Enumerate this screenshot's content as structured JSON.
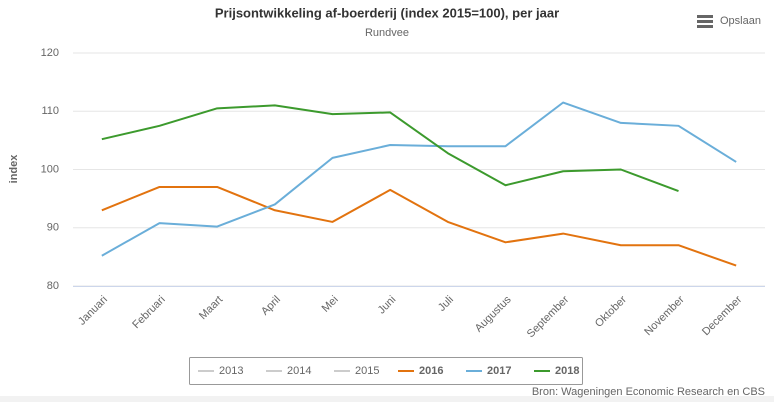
{
  "chart_data": {
    "type": "line",
    "title": "Prijsontwikkeling af-boerderij (index 2015=100), per jaar",
    "subtitle": "Rundvee",
    "y_label": "index",
    "source": "Bron: Wageningen Economic Research en CBS",
    "menu_label": "Opslaan",
    "categories": [
      "Januari",
      "Februari",
      "Maart",
      "April",
      "Mei",
      "Juni",
      "Juli",
      "Augustus",
      "September",
      "Oktober",
      "November",
      "December"
    ],
    "series": [
      {
        "name": "2013",
        "color": "#cccccc",
        "visible": false,
        "values": [
          null,
          null,
          null,
          null,
          null,
          null,
          null,
          null,
          null,
          null,
          null,
          null
        ]
      },
      {
        "name": "2014",
        "color": "#cccccc",
        "visible": false,
        "values": [
          null,
          null,
          null,
          null,
          null,
          null,
          null,
          null,
          null,
          null,
          null,
          null
        ]
      },
      {
        "name": "2015",
        "color": "#cccccc",
        "visible": false,
        "values": [
          null,
          null,
          null,
          null,
          null,
          null,
          null,
          null,
          null,
          null,
          null,
          null
        ]
      },
      {
        "name": "2016",
        "color": "#e2730f",
        "visible": true,
        "values": [
          93,
          97,
          97,
          93,
          91,
          96.5,
          91,
          87.5,
          89,
          87,
          87,
          83.5
        ]
      },
      {
        "name": "2017",
        "color": "#6aaed9",
        "visible": true,
        "values": [
          85.2,
          90.8,
          90.2,
          94,
          102,
          104.2,
          104,
          104,
          111.5,
          108,
          107.5,
          101.3
        ]
      },
      {
        "name": "2018",
        "color": "#3c9a2d",
        "visible": true,
        "values": [
          105.2,
          107.5,
          110.5,
          111,
          109.5,
          109.8,
          102.8,
          97.3,
          99.7,
          100,
          96.3,
          null
        ]
      }
    ],
    "ylim": [
      80,
      120
    ],
    "yticks": [
      80,
      90,
      100,
      110,
      120
    ],
    "grid": true
  }
}
